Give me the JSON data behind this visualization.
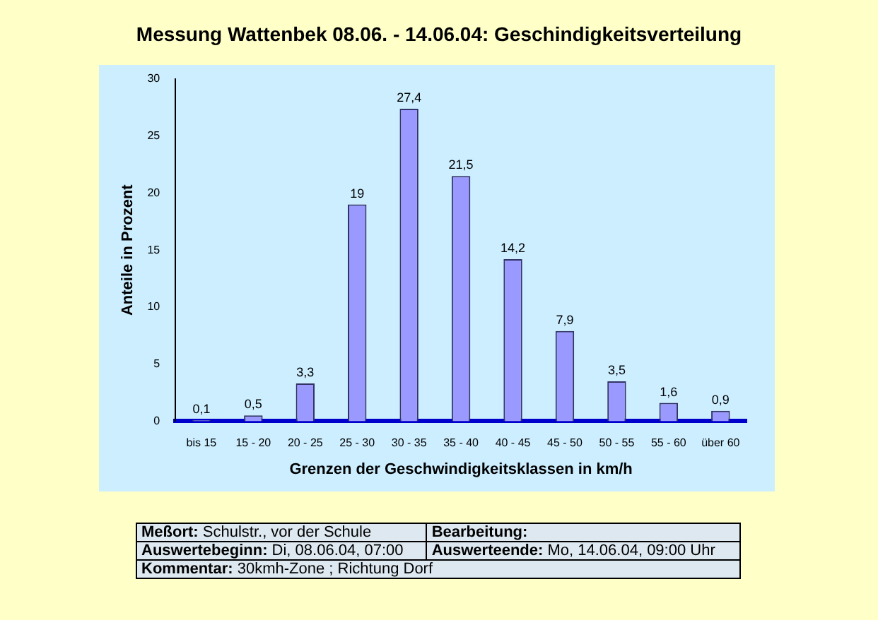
{
  "chart_data": {
    "type": "bar",
    "title": "Messung Wattenbek 08.06. - 14.06.04: Geschindigkeitsverteilung",
    "xlabel": "Grenzen der Geschwindigkeitsklassen in km/h",
    "ylabel": "Anteile in Prozent",
    "categories": [
      "bis 15",
      "15 - 20",
      "20 - 25",
      "25 - 30",
      "30 - 35",
      "35 - 40",
      "40 - 45",
      "45 - 50",
      "50 - 55",
      "55 - 60",
      "über 60"
    ],
    "values": [
      0.1,
      0.5,
      3.3,
      19,
      27.4,
      21.5,
      14.2,
      7.9,
      3.5,
      1.6,
      0.9
    ],
    "value_labels": [
      "0,1",
      "0,5",
      "3,3",
      "19",
      "27,4",
      "21,5",
      "14,2",
      "7,9",
      "3,5",
      "1,6",
      "0,9"
    ],
    "color": "#9999ff",
    "ylim": [
      0,
      30
    ],
    "yticks": [
      0,
      5,
      10,
      15,
      20,
      25,
      30
    ],
    "grid": false,
    "legend": false,
    "annotations": [
      "Meßort: Schulstr., vor der Schule",
      "Bearbeitung:",
      "Auswertebeginn: Di, 08.06.04, 07:00",
      "Auswerteende: Mo, 14.06.04, 09:00 Uhr",
      "Kommentar: 30kmh-Zone ; Richtung Dorf"
    ]
  }
}
